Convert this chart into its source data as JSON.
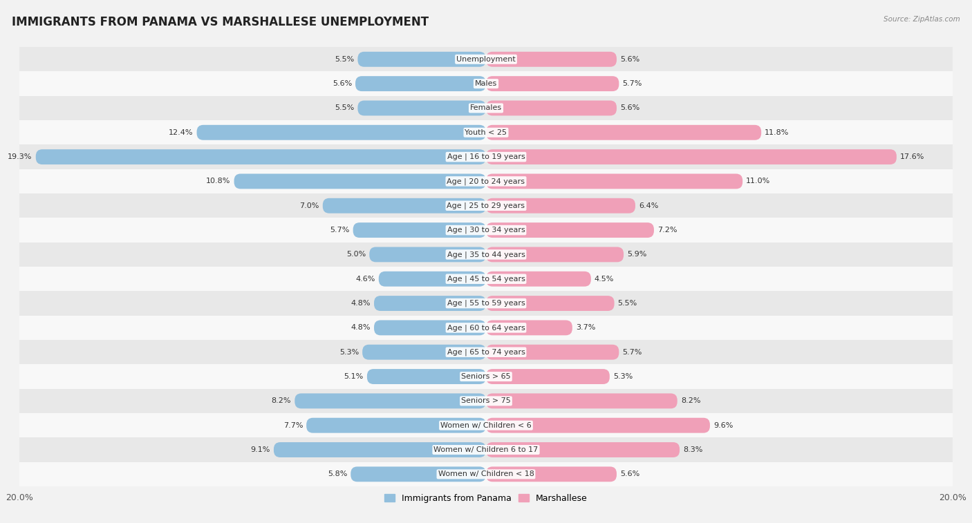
{
  "title": "IMMIGRANTS FROM PANAMA VS MARSHALLESE UNEMPLOYMENT",
  "source": "Source: ZipAtlas.com",
  "categories": [
    "Unemployment",
    "Males",
    "Females",
    "Youth < 25",
    "Age | 16 to 19 years",
    "Age | 20 to 24 years",
    "Age | 25 to 29 years",
    "Age | 30 to 34 years",
    "Age | 35 to 44 years",
    "Age | 45 to 54 years",
    "Age | 55 to 59 years",
    "Age | 60 to 64 years",
    "Age | 65 to 74 years",
    "Seniors > 65",
    "Seniors > 75",
    "Women w/ Children < 6",
    "Women w/ Children 6 to 17",
    "Women w/ Children < 18"
  ],
  "panama_values": [
    5.5,
    5.6,
    5.5,
    12.4,
    19.3,
    10.8,
    7.0,
    5.7,
    5.0,
    4.6,
    4.8,
    4.8,
    5.3,
    5.1,
    8.2,
    7.7,
    9.1,
    5.8
  ],
  "marshallese_values": [
    5.6,
    5.7,
    5.6,
    11.8,
    17.6,
    11.0,
    6.4,
    7.2,
    5.9,
    4.5,
    5.5,
    3.7,
    5.7,
    5.3,
    8.2,
    9.6,
    8.3,
    5.6
  ],
  "panama_color": "#92bfdd",
  "marshallese_color": "#f0a0b8",
  "background_color": "#f2f2f2",
  "row_bg_light": "#f8f8f8",
  "row_bg_dark": "#e8e8e8",
  "xlim": 20.0,
  "bar_height": 0.62,
  "legend_panama": "Immigrants from Panama",
  "legend_marshallese": "Marshallese",
  "title_fontsize": 12,
  "label_fontsize": 8,
  "value_fontsize": 8
}
